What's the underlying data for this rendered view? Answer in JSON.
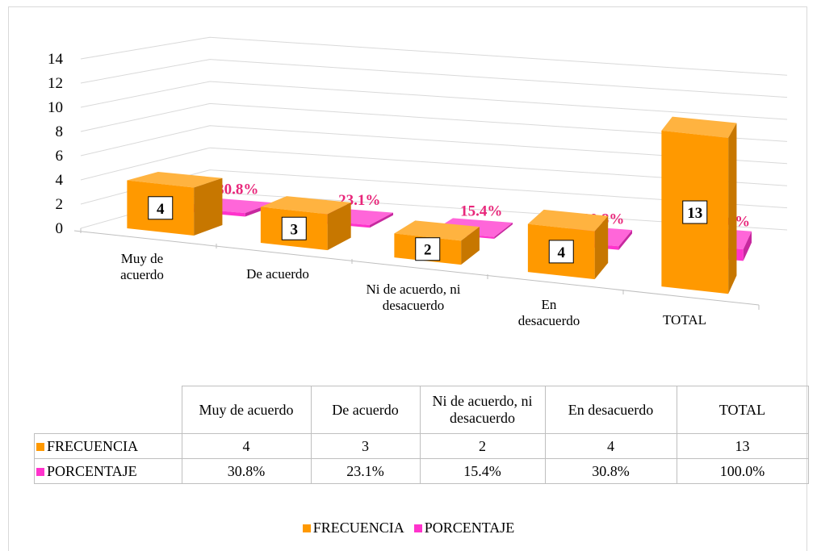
{
  "chart_data": {
    "type": "bar3d",
    "categories": [
      "Muy de acuerdo",
      "De acuerdo",
      "Ni de acuerdo, ni desacuerdo",
      "En desacuerdo",
      "TOTAL"
    ],
    "series": [
      {
        "name": "FRECUENCIA",
        "color": "#ff9900",
        "values": [
          4,
          3,
          2,
          4,
          13
        ]
      },
      {
        "name": "PORCENTAJE",
        "color": "#ff33cc",
        "values": [
          0.308,
          0.231,
          0.154,
          0.308,
          1.0
        ],
        "value_labels": [
          "30.8%",
          "23.1%",
          "15.4%",
          "30.8%",
          "100.0%"
        ]
      }
    ],
    "ylim": [
      0,
      14
    ],
    "yticks": [
      0,
      2,
      4,
      6,
      8,
      10,
      12,
      14
    ],
    "grid": true,
    "data_table": true,
    "legend": "bottom"
  }
}
